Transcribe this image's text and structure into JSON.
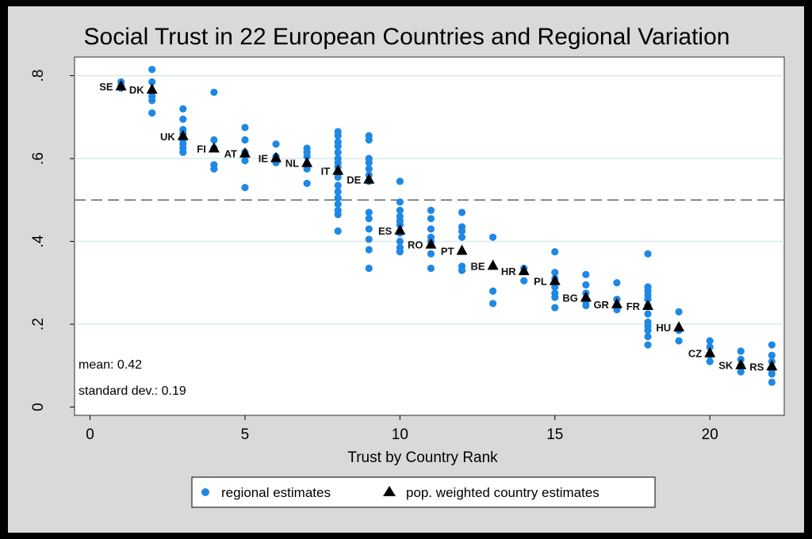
{
  "chart_data": {
    "type": "scatter",
    "title": "Social Trust in 22 European Countries and Regional Variation",
    "xlabel": "Trust by Country Rank",
    "ylabel": "",
    "xlim": [
      -0.5,
      22.4
    ],
    "ylim": [
      -0.02,
      0.845
    ],
    "xticks": [
      0,
      5,
      10,
      15,
      20
    ],
    "xtick_labels": [
      "0",
      "5",
      "10",
      "15",
      "20"
    ],
    "yticks": [
      0,
      0.2,
      0.4,
      0.6,
      0.8
    ],
    "ytick_labels": [
      "0",
      ".2",
      ".4",
      ".6",
      ".8"
    ],
    "grid": "horizontal",
    "reference_line": 0.5,
    "annotations": [
      "mean: 0.42",
      "standard dev.: 0.19"
    ],
    "legend": {
      "placement": "bottom",
      "entries": [
        "regional estimates",
        "pop. weighted country estimates"
      ]
    },
    "colors": {
      "regional": "#1e88e5",
      "country": "#000000",
      "plot_bg": "#ffffff",
      "outer_bg": "#d9d9d9",
      "grid": "#dce8ec"
    },
    "series": [
      {
        "name": "regional estimates",
        "marker": "circle",
        "points": [
          [
            1,
            0.785
          ],
          [
            1,
            0.775
          ],
          [
            1,
            0.77
          ],
          [
            2,
            0.815
          ],
          [
            2,
            0.785
          ],
          [
            2,
            0.76
          ],
          [
            2,
            0.75
          ],
          [
            2,
            0.74
          ],
          [
            2,
            0.71
          ],
          [
            3,
            0.72
          ],
          [
            3,
            0.695
          ],
          [
            3,
            0.67
          ],
          [
            3,
            0.66
          ],
          [
            3,
            0.645
          ],
          [
            3,
            0.635
          ],
          [
            3,
            0.625
          ],
          [
            3,
            0.615
          ],
          [
            4,
            0.76
          ],
          [
            4,
            0.645
          ],
          [
            4,
            0.625
          ],
          [
            4,
            0.585
          ],
          [
            4,
            0.575
          ],
          [
            5,
            0.675
          ],
          [
            5,
            0.645
          ],
          [
            5,
            0.615
          ],
          [
            5,
            0.595
          ],
          [
            5,
            0.53
          ],
          [
            6,
            0.635
          ],
          [
            6,
            0.605
          ],
          [
            6,
            0.59
          ],
          [
            7,
            0.625
          ],
          [
            7,
            0.615
          ],
          [
            7,
            0.605
          ],
          [
            7,
            0.585
          ],
          [
            7,
            0.575
          ],
          [
            7,
            0.54
          ],
          [
            8,
            0.665
          ],
          [
            8,
            0.655
          ],
          [
            8,
            0.64
          ],
          [
            8,
            0.63
          ],
          [
            8,
            0.615
          ],
          [
            8,
            0.6
          ],
          [
            8,
            0.59
          ],
          [
            8,
            0.58
          ],
          [
            8,
            0.565
          ],
          [
            8,
            0.555
          ],
          [
            8,
            0.535
          ],
          [
            8,
            0.52
          ],
          [
            8,
            0.505
          ],
          [
            8,
            0.49
          ],
          [
            8,
            0.475
          ],
          [
            8,
            0.465
          ],
          [
            8,
            0.425
          ],
          [
            9,
            0.655
          ],
          [
            9,
            0.645
          ],
          [
            9,
            0.6
          ],
          [
            9,
            0.59
          ],
          [
            9,
            0.575
          ],
          [
            9,
            0.56
          ],
          [
            9,
            0.545
          ],
          [
            9,
            0.47
          ],
          [
            9,
            0.455
          ],
          [
            9,
            0.43
          ],
          [
            9,
            0.405
          ],
          [
            9,
            0.38
          ],
          [
            9,
            0.335
          ],
          [
            10,
            0.545
          ],
          [
            10,
            0.495
          ],
          [
            10,
            0.475
          ],
          [
            10,
            0.46
          ],
          [
            10,
            0.45
          ],
          [
            10,
            0.44
          ],
          [
            10,
            0.42
          ],
          [
            10,
            0.4
          ],
          [
            10,
            0.385
          ],
          [
            10,
            0.375
          ],
          [
            11,
            0.475
          ],
          [
            11,
            0.455
          ],
          [
            11,
            0.43
          ],
          [
            11,
            0.41
          ],
          [
            11,
            0.4
          ],
          [
            11,
            0.37
          ],
          [
            11,
            0.335
          ],
          [
            12,
            0.47
          ],
          [
            12,
            0.435
          ],
          [
            12,
            0.425
          ],
          [
            12,
            0.41
          ],
          [
            12,
            0.34
          ],
          [
            12,
            0.33
          ],
          [
            13,
            0.41
          ],
          [
            13,
            0.28
          ],
          [
            13,
            0.25
          ],
          [
            14,
            0.335
          ],
          [
            14,
            0.305
          ],
          [
            15,
            0.375
          ],
          [
            15,
            0.325
          ],
          [
            15,
            0.31
          ],
          [
            15,
            0.29
          ],
          [
            15,
            0.275
          ],
          [
            15,
            0.265
          ],
          [
            15,
            0.24
          ],
          [
            16,
            0.32
          ],
          [
            16,
            0.295
          ],
          [
            16,
            0.275
          ],
          [
            16,
            0.255
          ],
          [
            16,
            0.245
          ],
          [
            17,
            0.3
          ],
          [
            17,
            0.26
          ],
          [
            17,
            0.245
          ],
          [
            17,
            0.235
          ],
          [
            18,
            0.37
          ],
          [
            18,
            0.29
          ],
          [
            18,
            0.28
          ],
          [
            18,
            0.27
          ],
          [
            18,
            0.26
          ],
          [
            18,
            0.245
          ],
          [
            18,
            0.225
          ],
          [
            18,
            0.205
          ],
          [
            18,
            0.195
          ],
          [
            18,
            0.185
          ],
          [
            18,
            0.17
          ],
          [
            18,
            0.15
          ],
          [
            19,
            0.23
          ],
          [
            19,
            0.185
          ],
          [
            19,
            0.16
          ],
          [
            20,
            0.16
          ],
          [
            20,
            0.145
          ],
          [
            20,
            0.125
          ],
          [
            20,
            0.11
          ],
          [
            21,
            0.135
          ],
          [
            21,
            0.115
          ],
          [
            21,
            0.1
          ],
          [
            21,
            0.085
          ],
          [
            22,
            0.15
          ],
          [
            22,
            0.125
          ],
          [
            22,
            0.11
          ],
          [
            22,
            0.09
          ],
          [
            22,
            0.08
          ],
          [
            22,
            0.06
          ]
        ]
      },
      {
        "name": "pop. weighted country estimates",
        "marker": "triangle",
        "points": [
          {
            "x": 1,
            "y": 0.776,
            "label": "SE",
            "label_side": "left"
          },
          {
            "x": 2,
            "y": 0.768,
            "label": "DK",
            "label_side": "left"
          },
          {
            "x": 3,
            "y": 0.656,
            "label": "UK",
            "label_side": "left"
          },
          {
            "x": 4,
            "y": 0.626,
            "label": "FI",
            "label_side": "left"
          },
          {
            "x": 5,
            "y": 0.614,
            "label": "AT",
            "label_side": "left"
          },
          {
            "x": 6,
            "y": 0.603,
            "label": "IE",
            "label_side": "left"
          },
          {
            "x": 7,
            "y": 0.591,
            "label": "NL",
            "label_side": "left"
          },
          {
            "x": 8,
            "y": 0.572,
            "label": "IT",
            "label_side": "left"
          },
          {
            "x": 9,
            "y": 0.551,
            "label": "DE",
            "label_side": "left"
          },
          {
            "x": 10,
            "y": 0.428,
            "label": "ES",
            "label_side": "left"
          },
          {
            "x": 11,
            "y": 0.394,
            "label": "RO",
            "label_side": "left"
          },
          {
            "x": 12,
            "y": 0.379,
            "label": "PT",
            "label_side": "left"
          },
          {
            "x": 13,
            "y": 0.343,
            "label": "BE",
            "label_side": "left"
          },
          {
            "x": 14,
            "y": 0.33,
            "label": "HR",
            "label_side": "left"
          },
          {
            "x": 15,
            "y": 0.306,
            "label": "PL",
            "label_side": "left"
          },
          {
            "x": 16,
            "y": 0.266,
            "label": "BG",
            "label_side": "left"
          },
          {
            "x": 17,
            "y": 0.25,
            "label": "GR",
            "label_side": "left"
          },
          {
            "x": 18,
            "y": 0.246,
            "label": "FR",
            "label_side": "left"
          },
          {
            "x": 19,
            "y": 0.194,
            "label": "HU",
            "label_side": "left"
          },
          {
            "x": 20,
            "y": 0.132,
            "label": "CZ",
            "label_side": "left"
          },
          {
            "x": 21,
            "y": 0.103,
            "label": "SK",
            "label_side": "left"
          },
          {
            "x": 22,
            "y": 0.1,
            "label": "RS",
            "label_side": "left"
          }
        ]
      }
    ]
  }
}
